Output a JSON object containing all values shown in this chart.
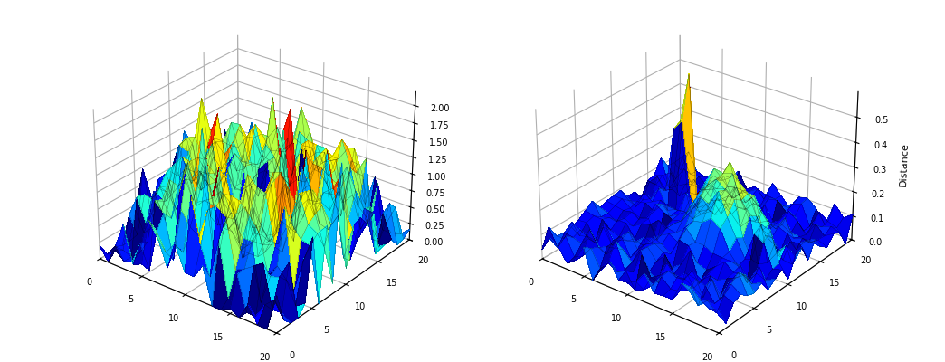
{
  "grid_size_esom": 20,
  "grid_size_som": 20,
  "esom_zlim": [
    0,
    2.2
  ],
  "som_zlim": [
    0,
    0.6
  ],
  "som_ylabel": "Distance",
  "background_color": "#ffffff",
  "colormap": "jet",
  "esom_seed": 42,
  "som_seed": 123,
  "esom_view_elev": 28,
  "esom_view_azim": -52,
  "som_view_elev": 28,
  "som_view_azim": -52
}
